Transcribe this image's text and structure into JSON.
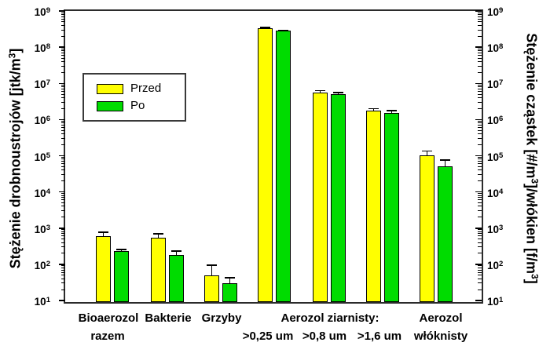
{
  "chart_data": {
    "type": "bar",
    "yscale": "log",
    "ylim": [
      10,
      1000000000
    ],
    "grid": false,
    "y_axis_left": {
      "title_parts": [
        "Stężenie drobnoustrojów [jtk/m",
        "3",
        "]"
      ],
      "tick_exponents": [
        1,
        2,
        3,
        4,
        5,
        6,
        7,
        8,
        9
      ]
    },
    "y_axis_right": {
      "title_parts": [
        "Stężenie cząstek [#/m",
        "3",
        "]/włókien [f/m",
        "3",
        "]"
      ],
      "tick_exponents": [
        1,
        2,
        3,
        4,
        5,
        6,
        7,
        8,
        9
      ]
    },
    "categories": [
      "Bioaerozol razem",
      "Bakterie",
      "Grzyby",
      "Aerozol ziarnisty: >0,25 um",
      "Aerozol ziarnisty: >0,8 um",
      "Aerozol ziarnisty: >1,6 um",
      "Aerozol włóknisty"
    ],
    "x_tick_labels_row1": [
      "Bioaerozol",
      "Bakterie",
      "Grzyby",
      "Aerozol ziarnisty:",
      "Aerozol"
    ],
    "x_tick_labels_row2": [
      "razem",
      ">0,25 um",
      ">0,8 um",
      ">1,6 um",
      "włóknisty"
    ],
    "series": [
      {
        "name": "Przed",
        "color": "#ffff00",
        "values": [
          600,
          550,
          50,
          330000000,
          5600000,
          1750000,
          105000
        ],
        "error_top": [
          780,
          700,
          95,
          350000000,
          6300000,
          2000000,
          135000
        ]
      },
      {
        "name": "Po",
        "color": "#00dc00",
        "values": [
          230,
          180,
          30,
          280000000,
          5000000,
          1550000,
          52000
        ],
        "error_top": [
          260,
          230,
          43,
          290000000,
          5600000,
          1750000,
          75000
        ]
      }
    ],
    "legend": {
      "position": "upper-left-inside",
      "entries": [
        "Przed",
        "Po"
      ]
    }
  },
  "colors": {
    "bar_przed": "#ffff00",
    "bar_po": "#00dc00",
    "bar_border": "#000000",
    "frame": "#2b2b2b",
    "background": "#ffffff",
    "text": "#000000"
  }
}
